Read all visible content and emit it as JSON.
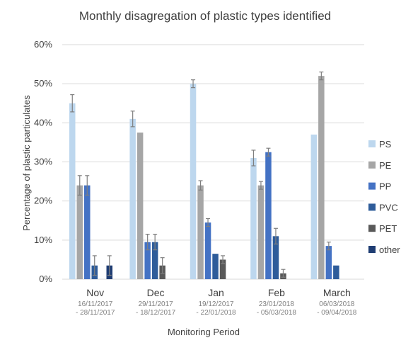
{
  "chart_data": {
    "type": "bar",
    "title": "Monthly disagregation of plastic types identified",
    "xlabel": "Monitoring Period",
    "ylabel": "Percentage of plastic particulates",
    "ylim": [
      0,
      60
    ],
    "yticks": [
      "0%",
      "10%",
      "20%",
      "30%",
      "40%",
      "50%",
      "60%"
    ],
    "grid": true,
    "legend_position": "right",
    "categories": [
      "Nov",
      "Dec",
      "Jan",
      "Feb",
      "March"
    ],
    "category_dates": [
      [
        "16/11/2017",
        "- 28/11/2017"
      ],
      [
        "29/11/2017",
        "- 18/12/2017"
      ],
      [
        "19/12/2017",
        "- 22/01/2018"
      ],
      [
        "23/01/2018",
        "- 05/03/2018"
      ],
      [
        "06/03/2018",
        "- 09/04/2018"
      ]
    ],
    "series": [
      {
        "name": "PS",
        "color": "#bdd7ee",
        "values": [
          45,
          41,
          50,
          31,
          37
        ],
        "errors": [
          2.2,
          2.0,
          1.0,
          2.0,
          0
        ]
      },
      {
        "name": "PE",
        "color": "#a6a6a6",
        "values": [
          24,
          37.5,
          24,
          24,
          52
        ],
        "errors": [
          2.5,
          0,
          1.2,
          1.0,
          1.0
        ]
      },
      {
        "name": "PP",
        "color": "#4472c4",
        "values": [
          24,
          9.5,
          14.5,
          32.5,
          8.5
        ],
        "errors": [
          2.5,
          2.0,
          1.0,
          1.0,
          1.0
        ]
      },
      {
        "name": "PVC",
        "color": "#2e5c9a",
        "values": [
          3.5,
          9.5,
          6.5,
          11,
          3.5
        ],
        "errors": [
          2.5,
          2.0,
          0,
          2.0,
          0
        ]
      },
      {
        "name": "PET",
        "color": "#595959",
        "values": [
          0,
          3.5,
          5,
          1.5,
          0
        ],
        "errors": [
          0,
          2.0,
          1.0,
          1.0,
          0
        ]
      },
      {
        "name": "other",
        "color": "#1f3d73",
        "values": [
          3.5,
          0,
          0,
          0,
          0
        ],
        "errors": [
          2.5,
          0,
          0,
          0,
          0
        ]
      }
    ]
  }
}
